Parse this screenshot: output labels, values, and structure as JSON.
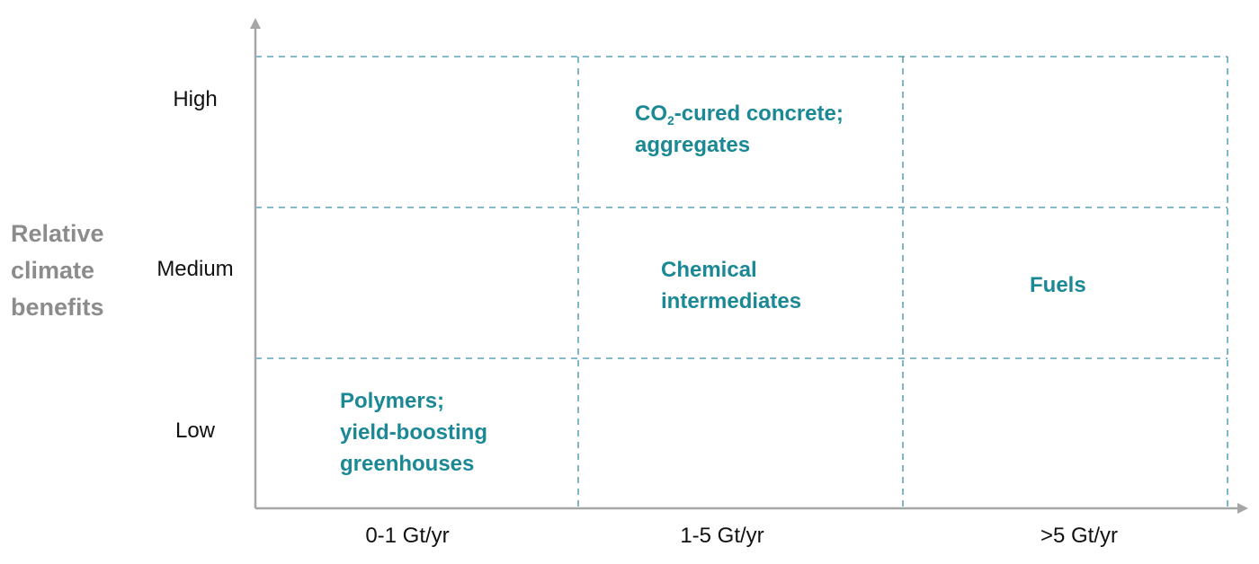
{
  "y_axis": {
    "title_lines": [
      "Relative",
      "climate",
      "benefits"
    ],
    "levels": [
      "High",
      "Medium",
      "Low"
    ]
  },
  "x_axis": {
    "levels": [
      "0-1 Gt/yr",
      "1-5 Gt/yr",
      ">5 Gt/yr"
    ]
  },
  "cells": {
    "concrete": {
      "co": "CO",
      "sub": "2",
      "line1_rest": "-cured concrete;",
      "line2": "aggregates"
    },
    "chemical": {
      "lines": [
        "Chemical",
        "intermediates"
      ]
    },
    "fuels": {
      "lines": [
        "Fuels"
      ]
    },
    "polymers": {
      "lines": [
        "Polymers;",
        "yield-boosting",
        "greenhouses"
      ]
    }
  },
  "colors": {
    "axis": "#a6a6a6",
    "grid": "#3a8fa8",
    "cell_text": "#1b8896",
    "axis_title": "#8c8c8c"
  }
}
